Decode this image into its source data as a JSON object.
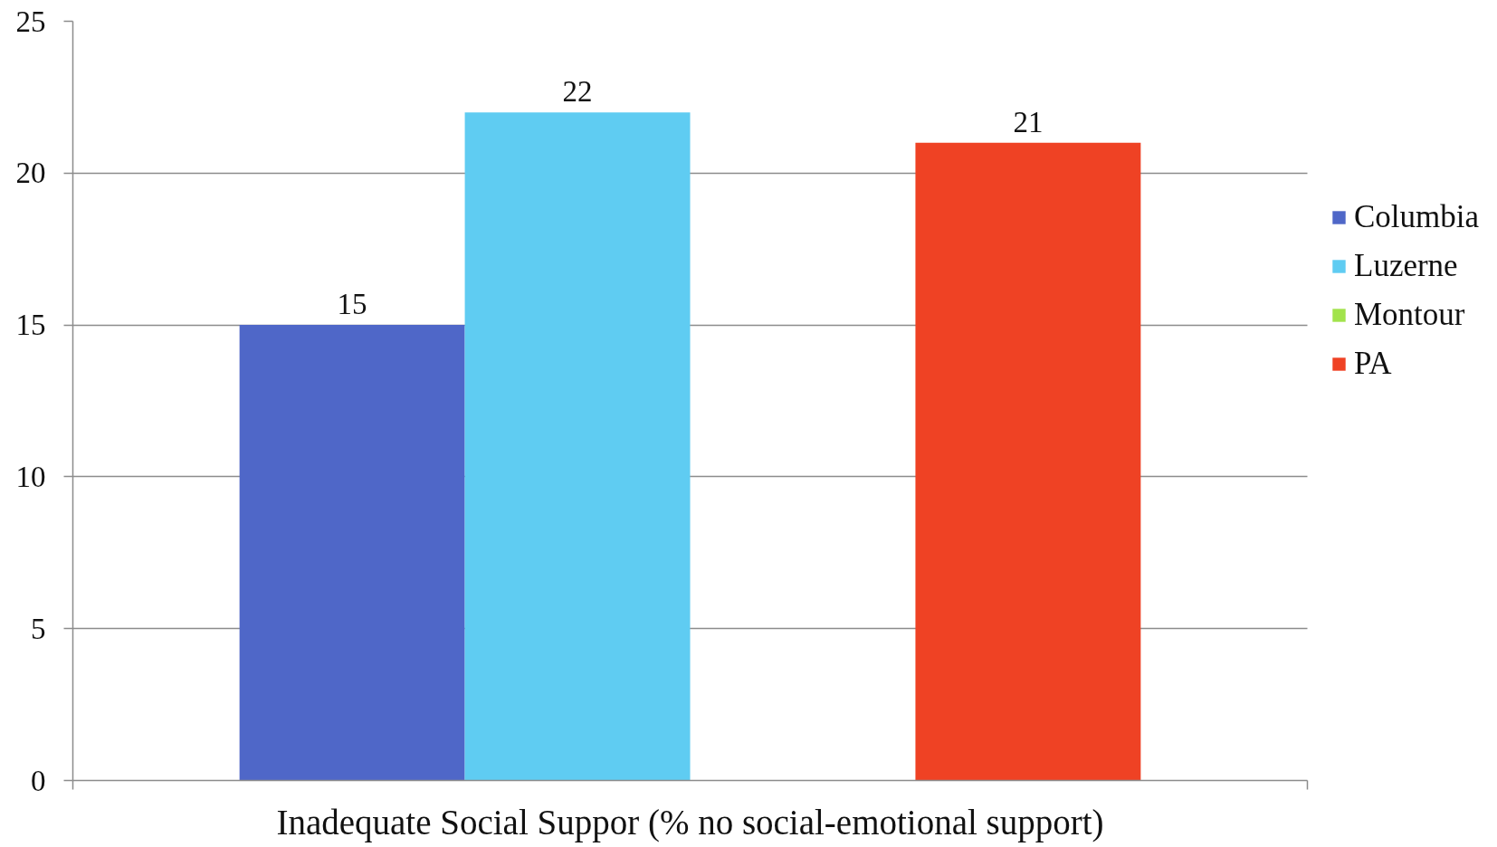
{
  "chart_data": {
    "type": "bar",
    "categories": [
      "Inadequate Social Suppor (% no social-emotional support)"
    ],
    "series": [
      {
        "name": "Columbia",
        "color": "#4f67c8",
        "values": [
          15
        ]
      },
      {
        "name": "Luzerne",
        "color": "#5fccf2",
        "values": [
          22
        ]
      },
      {
        "name": "Montour",
        "color": "#a2e34c",
        "values": [
          null
        ]
      },
      {
        "name": "PA",
        "color": "#ef4224",
        "values": [
          21
        ]
      }
    ],
    "ylim": [
      0,
      25
    ],
    "yticks": [
      0,
      5,
      10,
      15,
      20,
      25
    ],
    "grid": "y",
    "legend": "right",
    "data_labels": true
  }
}
